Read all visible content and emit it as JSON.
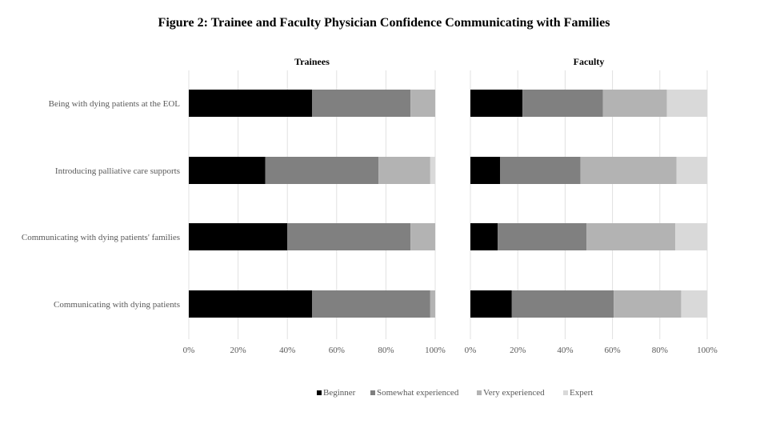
{
  "figure_title": "Figure 2: Trainee and Faculty Physician Confidence Communicating with Families",
  "colors": {
    "Beginner": "#000000",
    "Somewhat experienced": "#808080",
    "Very experienced": "#b3b3b3",
    "Expert": "#d9d9d9",
    "grid": "#e0e0e0",
    "axis_text": "#595959"
  },
  "chart_data": [
    {
      "type": "bar",
      "orientation": "horizontal",
      "stacked": "percent",
      "title": "Trainees",
      "categories": [
        "Being with dying patients at the EOL",
        "Introducing palliative care supports",
        "Communicating with dying patients' families",
        "Communicating with dying patients"
      ],
      "series": [
        {
          "name": "Beginner",
          "values": [
            50,
            31,
            40,
            50
          ]
        },
        {
          "name": "Somewhat experienced",
          "values": [
            40,
            46,
            50,
            48
          ]
        },
        {
          "name": "Very experienced",
          "values": [
            10,
            21,
            10,
            2
          ]
        },
        {
          "name": "Expert",
          "values": [
            0,
            2,
            0,
            0
          ]
        }
      ],
      "xlim": [
        0,
        100
      ],
      "ticks": [
        "0%",
        "20%",
        "40%",
        "60%",
        "80%",
        "100%"
      ],
      "grid": true
    },
    {
      "type": "bar",
      "orientation": "horizontal",
      "stacked": "percent",
      "title": "Faculty",
      "categories": [
        "Being with dying patients at the EOL",
        "Introducing palliative care supports",
        "Communicating with dying patients' families",
        "Communicating with dying patients"
      ],
      "series": [
        {
          "name": "Beginner",
          "values": [
            22,
            12.5,
            11.5,
            17.5
          ]
        },
        {
          "name": "Somewhat experienced",
          "values": [
            34,
            34,
            37.5,
            43
          ]
        },
        {
          "name": "Very experienced",
          "values": [
            27,
            40.5,
            37.5,
            28.5
          ]
        },
        {
          "name": "Expert",
          "values": [
            17,
            13,
            13.5,
            11
          ]
        }
      ],
      "xlim": [
        0,
        100
      ],
      "ticks": [
        "0%",
        "20%",
        "40%",
        "60%",
        "80%",
        "100%"
      ],
      "grid": true
    }
  ],
  "legend": {
    "placement": "bottom",
    "items": [
      "Beginner",
      "Somewhat experienced",
      "Very experienced",
      "Expert"
    ]
  }
}
